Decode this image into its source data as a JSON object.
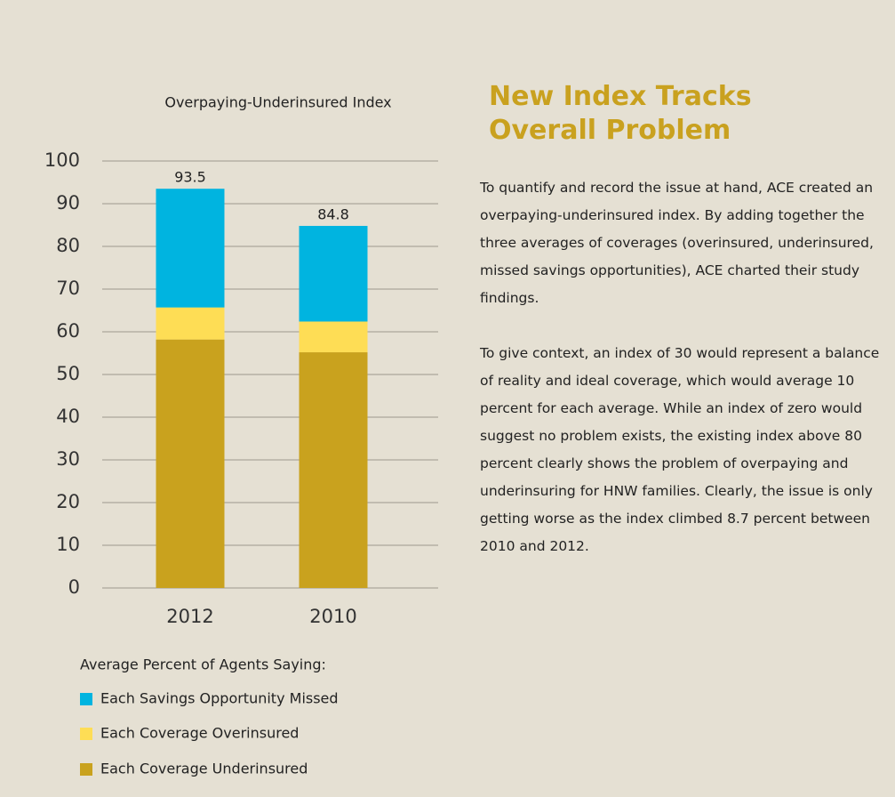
{
  "chart_data": {
    "type": "stacked_bar",
    "title": "Overpaying-Underinsured Index",
    "categories": [
      "2012",
      "2010"
    ],
    "series": [
      {
        "name": "Each Coverage Underinsured",
        "color": "#c9a21e",
        "values": [
          58.2,
          55.2
        ]
      },
      {
        "name": "Each Coverage Overinsured",
        "color": "#fedd55",
        "values": [
          7.5,
          7.2
        ]
      },
      {
        "name": "Each Savings Opportunity Missed",
        "color": "#00b4e0",
        "values": [
          27.8,
          22.4
        ]
      }
    ],
    "totals": [
      93.5,
      84.8
    ],
    "legend_title": "Average Percent of Agents Saying:",
    "ylim": [
      0,
      100
    ],
    "yticks": [
      0,
      10,
      20,
      30,
      40,
      50,
      60,
      70,
      80,
      90,
      100
    ],
    "grid": true
  },
  "article": {
    "heading": "New Index Tracks Overall Problem",
    "paragraphs": [
      "To quantify and record the issue at hand, ACE created an overpaying-underinsured index. By adding together the three averages of coverages (overinsured, underinsured, missed savings opportunities), ACE charted their study findings.",
      "To give context, an index of 30 would represent a balance of reality and ideal coverage, which would average 10 percent for each average. While an index of zero would suggest no problem exists, the existing index above 80 percent clearly shows the problem of overpaying and underinsuring for HNW families. Clearly, the issue is only getting worse as the index climbed 8.7 percent between 2010 and 2012."
    ]
  }
}
